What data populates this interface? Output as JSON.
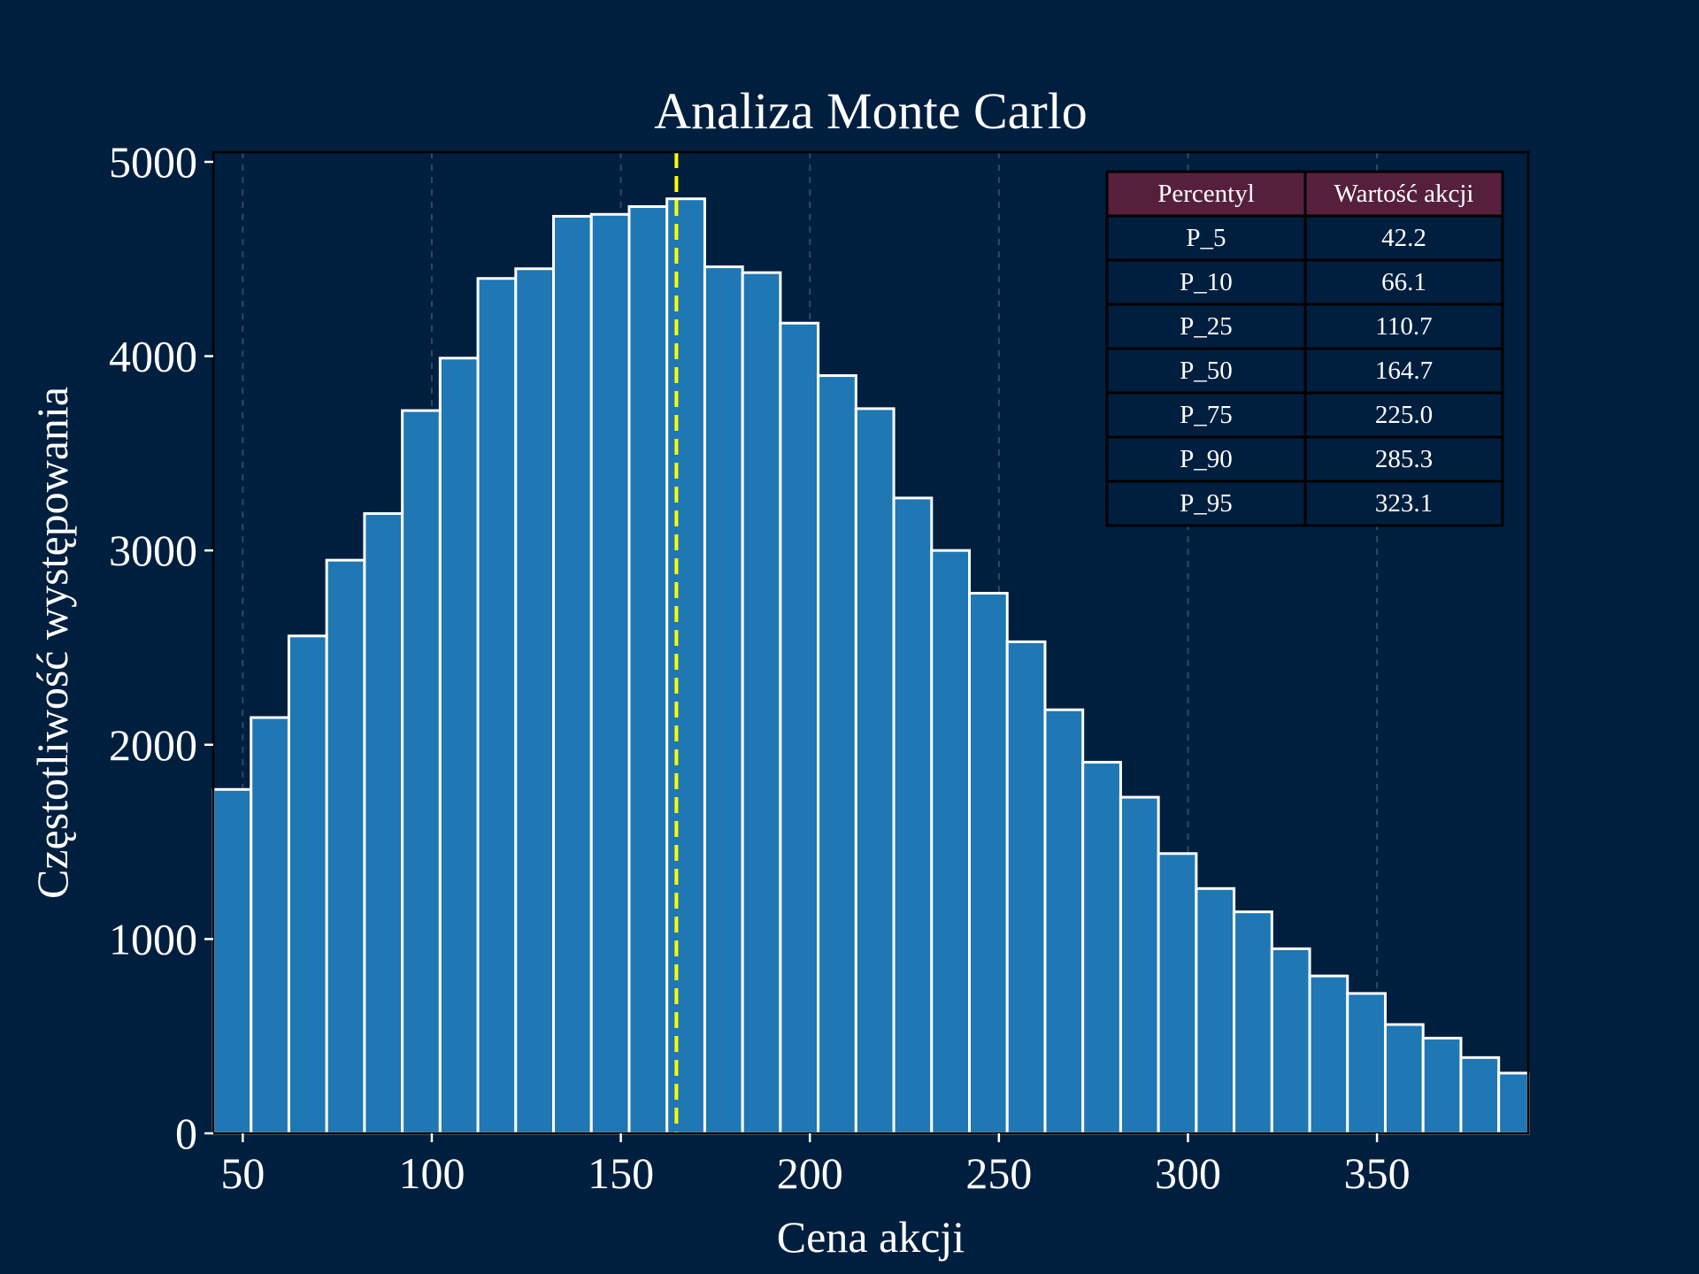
{
  "chart_data": {
    "type": "bar",
    "title": "Analiza Monte Carlo",
    "xlabel": "Cena akcji",
    "ylabel": "Częstotliwość występowania",
    "xlim": [
      42.2,
      390
    ],
    "ylim": [
      0,
      5050
    ],
    "xticks": [
      50,
      100,
      150,
      200,
      250,
      300,
      350
    ],
    "yticks": [
      0,
      1000,
      2000,
      3000,
      4000,
      5000
    ],
    "grid": "vertical dashed",
    "bin_start": 42.2,
    "bin_width": 10,
    "values": [
      1770,
      2140,
      2560,
      2950,
      3190,
      3720,
      3990,
      4400,
      4450,
      4720,
      4730,
      4770,
      4810,
      4460,
      4430,
      4170,
      3900,
      3730,
      3270,
      3000,
      2780,
      2530,
      2180,
      1910,
      1730,
      1440,
      1260,
      1140,
      950,
      810,
      720,
      560,
      490,
      390,
      310
    ],
    "median_line": 164.7,
    "median_line_color": "#ffff00",
    "bar_color": "#1f77b4",
    "table": {
      "placement": "top-right",
      "headers": [
        "Percentyl",
        "Wartość akcji"
      ],
      "rows": [
        [
          "P_5",
          "42.2"
        ],
        [
          "P_10",
          "66.1"
        ],
        [
          "P_25",
          "110.7"
        ],
        [
          "P_50",
          "164.7"
        ],
        [
          "P_75",
          "225.0"
        ],
        [
          "P_90",
          "285.3"
        ],
        [
          "P_95",
          "323.1"
        ]
      ]
    }
  }
}
